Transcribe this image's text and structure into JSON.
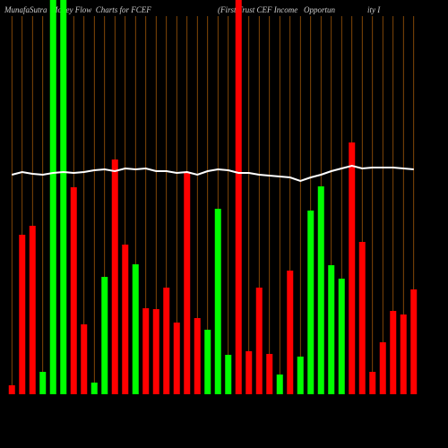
{
  "chart_data": {
    "type": "bar",
    "title": "MunafaSutra  Money Flow  Charts for FCEF",
    "subtitle": "(First Trust CEF Income   Opportun                ity I",
    "categories": [
      null,
      null,
      null,
      null,
      null,
      null,
      null,
      null,
      null,
      null,
      null,
      null,
      null,
      null,
      null,
      null,
      null,
      null,
      null,
      null,
      null,
      null,
      null,
      null,
      null,
      null,
      null,
      null,
      null,
      null,
      null,
      null,
      null,
      null,
      null,
      null,
      null,
      null,
      null,
      null
    ],
    "values": [
      10,
      178,
      188,
      25,
      440,
      440,
      231,
      78,
      13,
      131,
      262,
      167,
      145,
      96,
      95,
      119,
      80,
      247,
      85,
      72,
      207,
      44,
      440,
      48,
      119,
      45,
      22,
      138,
      42,
      205,
      232,
      144,
      129,
      281,
      170,
      25,
      58,
      93,
      89,
      117
    ],
    "colors": [
      "#ff0000",
      "#ff0000",
      "#ff0000",
      "#00ff00",
      "#00ff00",
      "#00ff00",
      "#ff0000",
      "#ff0000",
      "#00ff00",
      "#00ff00",
      "#ff0000",
      "#ff0000",
      "#00ff00",
      "#ff0000",
      "#ff0000",
      "#ff0000",
      "#ff0000",
      "#ff0000",
      "#ff0000",
      "#00ff00",
      "#00ff00",
      "#00ff00",
      "#ff0000",
      "#ff0000",
      "#ff0000",
      "#ff0000",
      "#00ff00",
      "#ff0000",
      "#00ff00",
      "#00ff00",
      "#00ff00",
      "#00ff00",
      "#00ff00",
      "#ff0000",
      "#ff0000",
      "#ff0000",
      "#ff0000",
      "#ff0000",
      "#ff0000",
      "#ff0000"
    ],
    "line": {
      "color": "#ffffff",
      "values": [
        245,
        248,
        246,
        245,
        247,
        248,
        247,
        248,
        250,
        251,
        249,
        252,
        251,
        252,
        249,
        249,
        247,
        248,
        245,
        249,
        251,
        250,
        247,
        247,
        245,
        244,
        243,
        242,
        238,
        242,
        245,
        249,
        252,
        255,
        252,
        253,
        253,
        253,
        252,
        251
      ]
    },
    "ylim": [
      0,
      440
    ],
    "grid_color": "#b8650a",
    "background": "#000000"
  }
}
